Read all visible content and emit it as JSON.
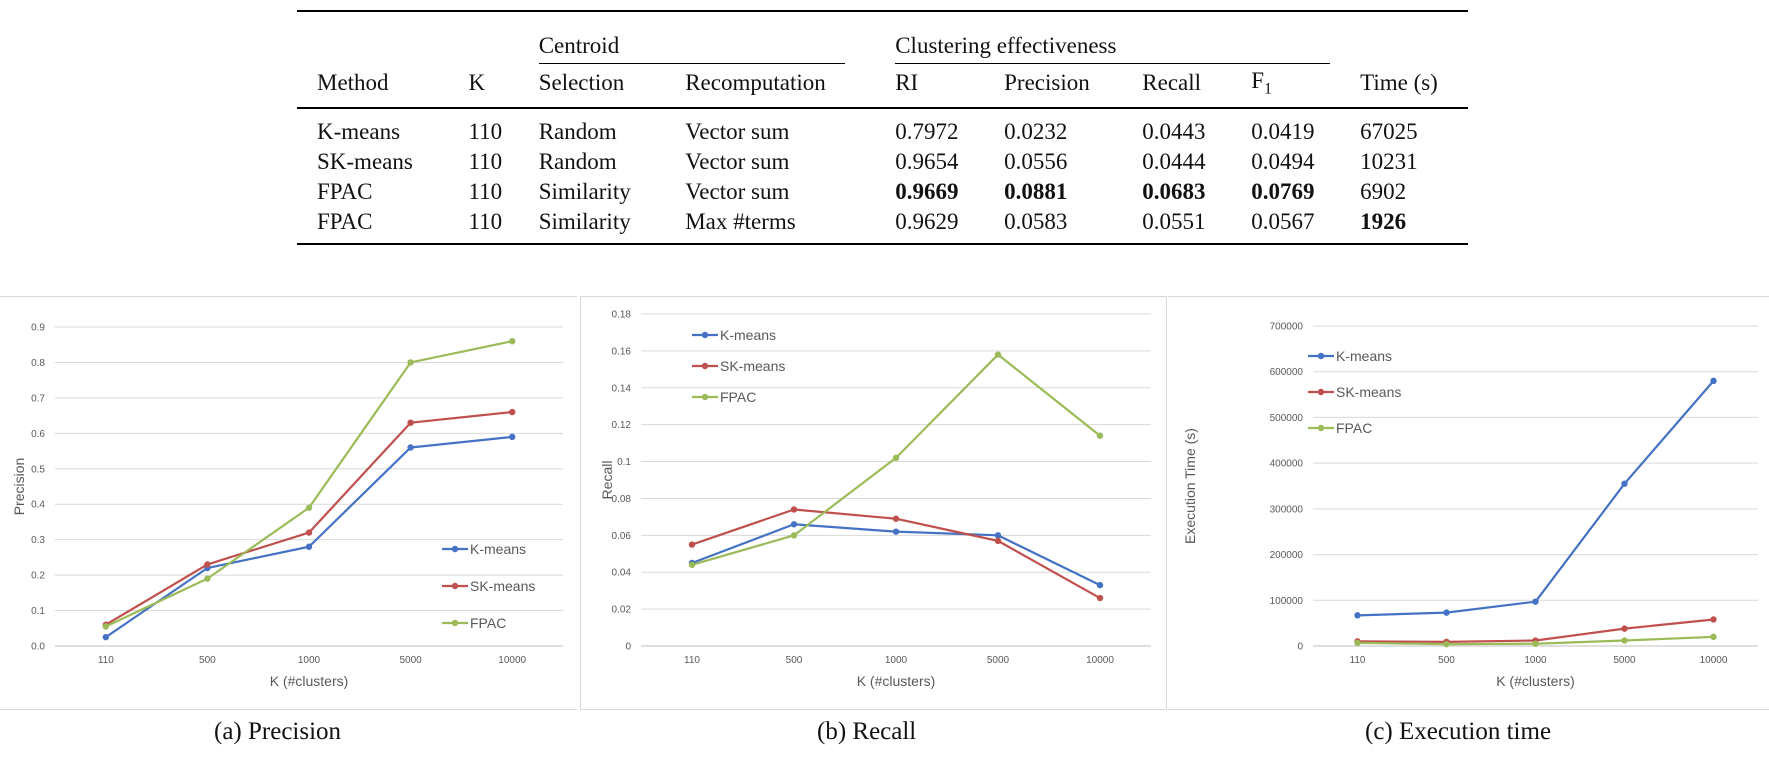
{
  "table": {
    "group_headers": {
      "centroid": "Centroid",
      "effectiveness": "Clustering effectiveness"
    },
    "columns": [
      "Method",
      "K",
      "Selection",
      "Recomputation",
      "RI",
      "Precision",
      "Recall",
      "F",
      "Time (s)"
    ],
    "f_subscript": "1",
    "rows": [
      {
        "method": "K-means",
        "k": "110",
        "selection": "Random",
        "recomputation": "Vector sum",
        "ri": "0.7972",
        "precision": "0.0232",
        "recall": "0.0443",
        "f1": "0.0419",
        "time": "67025"
      },
      {
        "method": "SK-means",
        "k": "110",
        "selection": "Random",
        "recomputation": "Vector sum",
        "ri": "0.9654",
        "precision": "0.0556",
        "recall": "0.0444",
        "f1": "0.0494",
        "time": "10231"
      },
      {
        "method": "FPAC",
        "k": "110",
        "selection": "Similarity",
        "recomputation": "Vector sum",
        "ri": "0.9669",
        "precision": "0.0881",
        "recall": "0.0683",
        "f1": "0.0769",
        "time": "6902"
      },
      {
        "method": "FPAC",
        "k": "110",
        "selection": "Similarity",
        "recomputation": "Max #terms",
        "ri": "0.9629",
        "precision": "0.0583",
        "recall": "0.0551",
        "f1": "0.0567",
        "time": "1926"
      }
    ]
  },
  "chart_data": [
    {
      "type": "line",
      "caption": "(a) Precision",
      "xlabel": "K (#clusters)",
      "ylabel": "Precision",
      "categories": [
        "110",
        "500",
        "1000",
        "5000",
        "10000"
      ],
      "ylim": [
        0,
        0.9
      ],
      "yticks": [
        "0.0",
        "0.1",
        "0.2",
        "0.3",
        "0.4",
        "0.5",
        "0.6",
        "0.7",
        "0.8",
        "0.9"
      ],
      "legend_position": "bottom-right",
      "grid": true,
      "series": [
        {
          "name": "K-means",
          "color": "#4472C4",
          "values": [
            0.025,
            0.22,
            0.28,
            0.56,
            0.59
          ]
        },
        {
          "name": "SK-means",
          "color": "#C0504D",
          "values": [
            0.06,
            0.23,
            0.32,
            0.63,
            0.66
          ]
        },
        {
          "name": "FPAC",
          "color": "#9BBB59",
          "values": [
            0.055,
            0.19,
            0.39,
            0.8,
            0.86
          ]
        }
      ]
    },
    {
      "type": "line",
      "caption": "(b) Recall",
      "xlabel": "K (#clusters)",
      "ylabel": "Recall",
      "categories": [
        "110",
        "500",
        "1000",
        "5000",
        "10000"
      ],
      "ylim": [
        0,
        0.18
      ],
      "yticks": [
        "0",
        "0.02",
        "0.04",
        "0.06",
        "0.08",
        "0.1",
        "0.12",
        "0.14",
        "0.16",
        "0.18"
      ],
      "legend_position": "top-left",
      "grid": true,
      "series": [
        {
          "name": "K-means",
          "color": "#4472C4",
          "values": [
            0.045,
            0.066,
            0.062,
            0.06,
            0.033
          ]
        },
        {
          "name": "SK-means",
          "color": "#C0504D",
          "values": [
            0.055,
            0.074,
            0.069,
            0.057,
            0.026
          ]
        },
        {
          "name": "FPAC",
          "color": "#9BBB59",
          "values": [
            0.044,
            0.06,
            0.102,
            0.158,
            0.114
          ]
        }
      ]
    },
    {
      "type": "line",
      "caption": "(c) Execution time",
      "xlabel": "K (#clusters)",
      "ylabel": "Execution Time (s)",
      "categories": [
        "110",
        "500",
        "1000",
        "5000",
        "10000"
      ],
      "ylim": [
        0,
        700000
      ],
      "yticks": [
        "0",
        "100000",
        "200000",
        "300000",
        "400000",
        "500000",
        "600000",
        "700000"
      ],
      "legend_position": "top-left",
      "grid": true,
      "series": [
        {
          "name": "K-means",
          "color": "#4472C4",
          "values": [
            67025,
            73000,
            97000,
            355000,
            580000
          ]
        },
        {
          "name": "SK-means",
          "color": "#C0504D",
          "values": [
            10231,
            9000,
            12000,
            38000,
            58000
          ]
        },
        {
          "name": "FPAC",
          "color": "#9BBB59",
          "values": [
            6902,
            4000,
            5000,
            12000,
            20000
          ]
        }
      ]
    }
  ]
}
